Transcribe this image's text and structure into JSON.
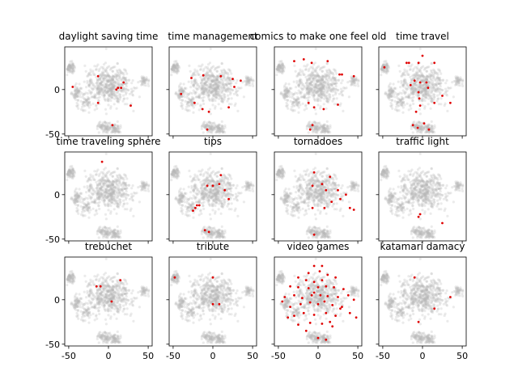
{
  "chart_data": [
    {
      "type": "scatter",
      "title": "daylight saving time",
      "xlim": [
        -55,
        55
      ],
      "ylim": [
        -52,
        48
      ],
      "xticks": [
        -50,
        0,
        50
      ],
      "yticks": [
        -50,
        0
      ],
      "points": [
        [
          -45,
          3
        ],
        [
          -13,
          15
        ],
        [
          -13,
          -15
        ],
        [
          10,
          0
        ],
        [
          12,
          2
        ],
        [
          16,
          2
        ],
        [
          19,
          8
        ],
        [
          28,
          -18
        ],
        [
          5,
          -40
        ]
      ]
    },
    {
      "type": "scatter",
      "title": "time management",
      "xlim": [
        -55,
        55
      ],
      "ylim": [
        -52,
        48
      ],
      "xticks": [
        -50,
        0,
        50
      ],
      "yticks": [
        -50,
        0
      ],
      "points": [
        [
          -40,
          -5
        ],
        [
          -27,
          13
        ],
        [
          -12,
          16
        ],
        [
          -23,
          -15
        ],
        [
          -13,
          -22
        ],
        [
          10,
          15
        ],
        [
          25,
          12
        ],
        [
          27,
          3
        ],
        [
          35,
          10
        ],
        [
          20,
          -20
        ],
        [
          -7,
          -45
        ],
        [
          -5,
          -25
        ]
      ]
    },
    {
      "type": "scatter",
      "title": "comics to make one feel old",
      "xlim": [
        -55,
        55
      ],
      "ylim": [
        -52,
        48
      ],
      "xticks": [
        -50,
        0,
        50
      ],
      "yticks": [
        -50,
        0
      ],
      "points": [
        [
          -30,
          32
        ],
        [
          -18,
          34
        ],
        [
          -8,
          30
        ],
        [
          12,
          32
        ],
        [
          27,
          17
        ],
        [
          30,
          17
        ],
        [
          45,
          15
        ],
        [
          -12,
          -15
        ],
        [
          -5,
          -20
        ],
        [
          7,
          -22
        ],
        [
          25,
          -17
        ],
        [
          -7,
          -40
        ],
        [
          -10,
          -45
        ]
      ]
    },
    {
      "type": "scatter",
      "title": "time travel",
      "xlim": [
        -55,
        55
      ],
      "ylim": [
        -52,
        48
      ],
      "xticks": [
        -50,
        0,
        50
      ],
      "yticks": [
        -50,
        0
      ],
      "points": [
        [
          -48,
          25
        ],
        [
          -20,
          30
        ],
        [
          -17,
          30
        ],
        [
          -10,
          10
        ],
        [
          -5,
          30
        ],
        [
          0,
          38
        ],
        [
          15,
          30
        ],
        [
          -15,
          5
        ],
        [
          -3,
          8
        ],
        [
          5,
          8
        ],
        [
          7,
          2
        ],
        [
          -5,
          -3
        ],
        [
          -4,
          -10
        ],
        [
          -3,
          -18
        ],
        [
          15,
          -15
        ],
        [
          -8,
          -25
        ],
        [
          -12,
          -40
        ],
        [
          -6,
          -43
        ],
        [
          2,
          -38
        ],
        [
          8,
          -45
        ],
        [
          25,
          -7
        ],
        [
          35,
          -15
        ]
      ]
    },
    {
      "type": "scatter",
      "title": "time traveling sphere",
      "xlim": [
        -55,
        55
      ],
      "ylim": [
        -52,
        48
      ],
      "xticks": [
        -50,
        0,
        50
      ],
      "yticks": [
        -50,
        0
      ],
      "points": [
        [
          -8,
          37
        ]
      ]
    },
    {
      "type": "scatter",
      "title": "tips",
      "xlim": [
        -55,
        55
      ],
      "ylim": [
        -52,
        48
      ],
      "xticks": [
        -50,
        0,
        50
      ],
      "yticks": [
        -50,
        0
      ],
      "points": [
        [
          10,
          22
        ],
        [
          8,
          12
        ],
        [
          -7,
          10
        ],
        [
          0,
          10
        ],
        [
          15,
          5
        ],
        [
          20,
          -5
        ],
        [
          -20,
          -12
        ],
        [
          -17,
          -12
        ],
        [
          -22,
          -15
        ],
        [
          -25,
          -18
        ],
        [
          -10,
          -40
        ],
        [
          -5,
          -42
        ]
      ]
    },
    {
      "type": "scatter",
      "title": "tornadoes",
      "xlim": [
        -55,
        55
      ],
      "ylim": [
        -52,
        48
      ],
      "xticks": [
        -50,
        0,
        50
      ],
      "yticks": [
        -50,
        0
      ],
      "points": [
        [
          -5,
          25
        ],
        [
          15,
          20
        ],
        [
          -7,
          10
        ],
        [
          5,
          12
        ],
        [
          10,
          5
        ],
        [
          25,
          5
        ],
        [
          28,
          -5
        ],
        [
          35,
          0
        ],
        [
          17,
          -8
        ],
        [
          -7,
          -15
        ],
        [
          8,
          -15
        ],
        [
          40,
          -15
        ],
        [
          45,
          -17
        ],
        [
          -5,
          -45
        ]
      ]
    },
    {
      "type": "scatter",
      "title": "traffic light",
      "xlim": [
        -55,
        55
      ],
      "ylim": [
        -52,
        48
      ],
      "xticks": [
        -50,
        0,
        50
      ],
      "yticks": [
        -50,
        0
      ],
      "points": [
        [
          -3,
          -22
        ],
        [
          -5,
          -25
        ],
        [
          25,
          -32
        ]
      ]
    },
    {
      "type": "scatter",
      "title": "trebuchet",
      "xlim": [
        -55,
        55
      ],
      "ylim": [
        -52,
        48
      ],
      "xticks": [
        -50,
        0,
        50
      ],
      "yticks": [
        -50,
        0
      ],
      "points": [
        [
          -15,
          15
        ],
        [
          -10,
          15
        ],
        [
          15,
          22
        ],
        [
          4,
          -2
        ]
      ]
    },
    {
      "type": "scatter",
      "title": "tribute",
      "xlim": [
        -55,
        55
      ],
      "ylim": [
        -52,
        48
      ],
      "xticks": [
        -50,
        0,
        50
      ],
      "yticks": [
        -50,
        0
      ],
      "points": [
        [
          -48,
          25
        ],
        [
          0,
          25
        ],
        [
          0,
          -5
        ],
        [
          8,
          -5
        ]
      ]
    },
    {
      "type": "scatter",
      "title": "video games",
      "xlim": [
        -55,
        55
      ],
      "ylim": [
        -52,
        48
      ],
      "xticks": [
        -50,
        0,
        50
      ],
      "yticks": [
        -50,
        0
      ],
      "points": [
        [
          -5,
          38
        ],
        [
          5,
          38
        ],
        [
          -12,
          30
        ],
        [
          2,
          32
        ],
        [
          12,
          28
        ],
        [
          -25,
          25
        ],
        [
          -15,
          22
        ],
        [
          -5,
          20
        ],
        [
          5,
          22
        ],
        [
          22,
          25
        ],
        [
          -35,
          15
        ],
        [
          -25,
          14
        ],
        [
          -12,
          13
        ],
        [
          0,
          14
        ],
        [
          10,
          15
        ],
        [
          20,
          14
        ],
        [
          32,
          12
        ],
        [
          -42,
          3
        ],
        [
          -30,
          5
        ],
        [
          -20,
          2
        ],
        [
          -8,
          5
        ],
        [
          3,
          5
        ],
        [
          12,
          4
        ],
        [
          25,
          3
        ],
        [
          38,
          5
        ],
        [
          -45,
          -2
        ],
        [
          -35,
          -8
        ],
        [
          -22,
          -5
        ],
        [
          -10,
          -3
        ],
        [
          0,
          -5
        ],
        [
          8,
          -2
        ],
        [
          18,
          -6
        ],
        [
          30,
          -8
        ],
        [
          -30,
          -18
        ],
        [
          -18,
          -15
        ],
        [
          -5,
          -17
        ],
        [
          10,
          -15
        ],
        [
          22,
          -18
        ],
        [
          40,
          -15
        ],
        [
          -25,
          -28
        ],
        [
          -10,
          -26
        ],
        [
          5,
          -27
        ],
        [
          18,
          -30
        ],
        [
          0,
          -43
        ],
        [
          10,
          -45
        ],
        [
          -15,
          -35
        ],
        [
          28,
          -10
        ],
        [
          -38,
          -20
        ],
        [
          48,
          -20
        ],
        [
          45,
          0
        ],
        [
          -5,
          8
        ],
        [
          15,
          -25
        ]
      ]
    },
    {
      "type": "scatter",
      "title": "katamari damacy",
      "xlim": [
        -55,
        55
      ],
      "ylim": [
        -52,
        48
      ],
      "xticks": [
        -50,
        0,
        50
      ],
      "yticks": [
        -50,
        0
      ],
      "points": [
        [
          -10,
          25
        ],
        [
          35,
          3
        ],
        [
          15,
          -10
        ],
        [
          -5,
          -25
        ]
      ]
    }
  ]
}
